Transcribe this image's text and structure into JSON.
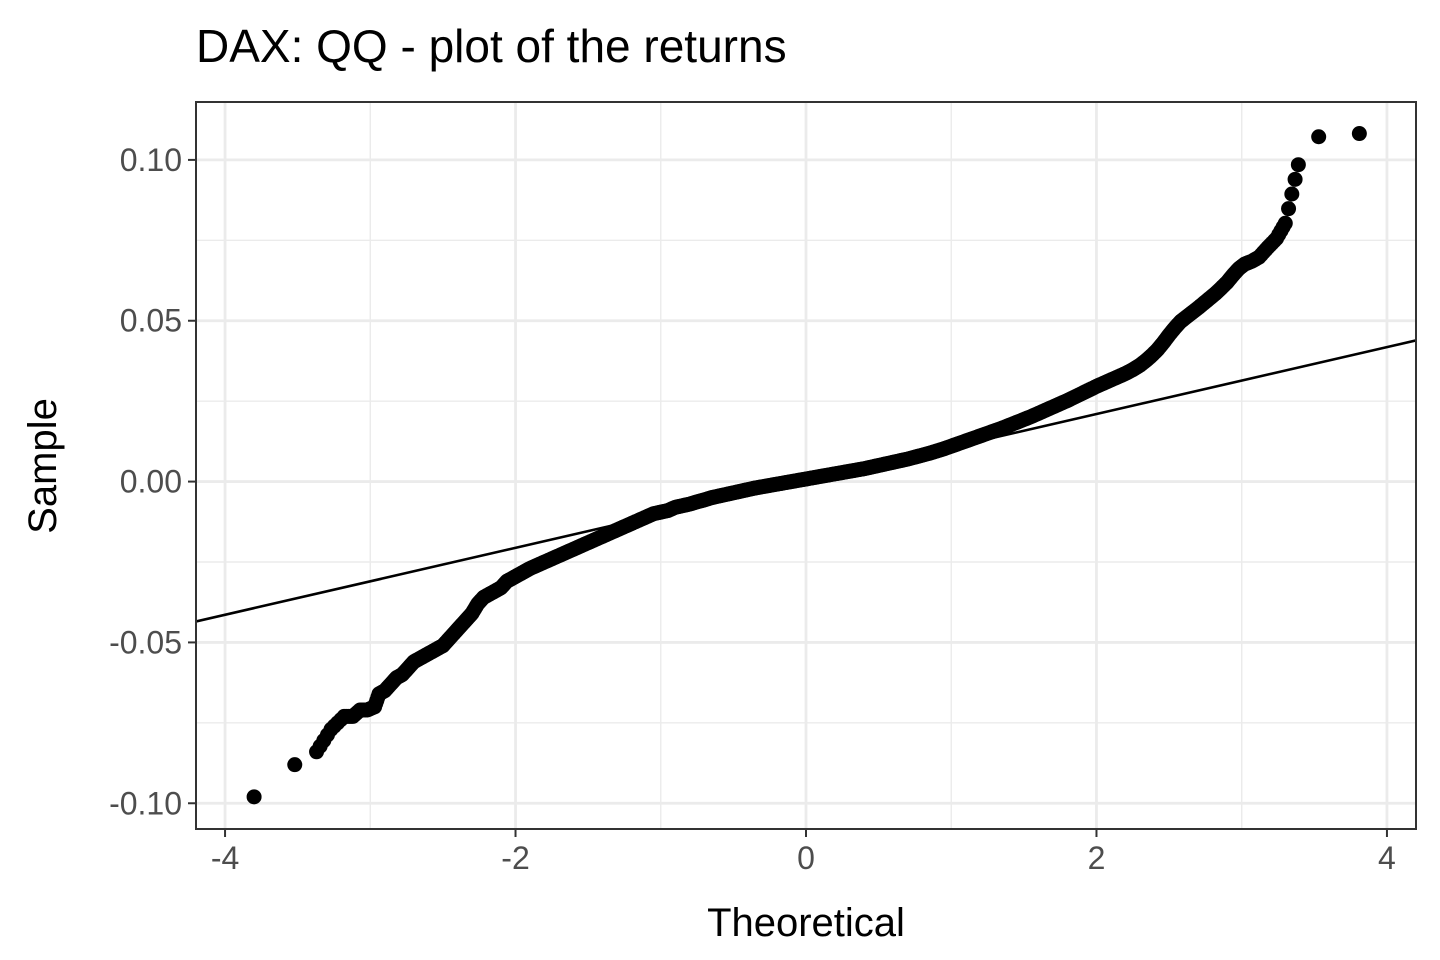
{
  "chart_data": {
    "type": "scatter",
    "title": "DAX: QQ - plot of the returns",
    "xlabel": "Theoretical",
    "ylabel": "Sample",
    "xlim": [
      -4.2,
      4.2
    ],
    "ylim": [
      -0.108,
      0.118
    ],
    "x_ticks": [
      -4,
      -2,
      0,
      2,
      4
    ],
    "x_tick_labels": [
      "-4",
      "-2",
      "0",
      "2",
      "4"
    ],
    "y_ticks": [
      -0.1,
      -0.05,
      0.0,
      0.05,
      0.1
    ],
    "y_tick_labels": [
      "-0.10",
      "-0.05",
      "0.00",
      "0.05",
      "0.10"
    ],
    "grid": true,
    "legend": "none",
    "reference_line": {
      "slope": 0.0104,
      "intercept": 0.0002
    },
    "series": [
      {
        "points": [
          [
            -3.8,
            -0.098
          ],
          [
            -3.52,
            -0.088
          ],
          [
            -3.37,
            -0.084
          ],
          [
            -3.27,
            -0.077
          ],
          [
            -3.18,
            -0.073
          ],
          [
            -3.12,
            -0.073
          ],
          [
            -3.07,
            -0.071
          ],
          [
            -3.02,
            -0.071
          ],
          [
            -2.97,
            -0.07
          ],
          [
            -2.94,
            -0.066
          ],
          [
            -2.9,
            -0.065
          ],
          [
            -2.86,
            -0.063
          ],
          [
            -2.82,
            -0.061
          ],
          [
            -2.78,
            -0.06
          ],
          [
            -2.74,
            -0.058
          ],
          [
            -2.7,
            -0.056
          ],
          [
            -2.66,
            -0.055
          ],
          [
            -2.62,
            -0.054
          ],
          [
            -2.58,
            -0.053
          ],
          [
            -2.54,
            -0.052
          ],
          [
            -2.5,
            -0.051
          ],
          [
            -2.46,
            -0.049
          ],
          [
            -2.42,
            -0.047
          ],
          [
            -2.38,
            -0.045
          ],
          [
            -2.34,
            -0.043
          ],
          [
            -2.3,
            -0.041
          ],
          [
            -2.26,
            -0.038
          ],
          [
            -2.22,
            -0.036
          ],
          [
            -2.18,
            -0.035
          ],
          [
            -2.14,
            -0.034
          ],
          [
            -2.1,
            -0.033
          ],
          [
            -2.06,
            -0.031
          ],
          [
            -2.02,
            -0.03
          ],
          [
            -1.98,
            -0.029
          ],
          [
            -1.94,
            -0.028
          ],
          [
            -1.9,
            -0.027
          ],
          [
            -1.85,
            -0.026
          ],
          [
            -1.8,
            -0.025
          ],
          [
            -1.75,
            -0.024
          ],
          [
            -1.7,
            -0.023
          ],
          [
            -1.65,
            -0.022
          ],
          [
            -1.6,
            -0.021
          ],
          [
            -1.55,
            -0.02
          ],
          [
            -1.5,
            -0.019
          ],
          [
            -1.45,
            -0.018
          ],
          [
            -1.4,
            -0.017
          ],
          [
            -1.35,
            -0.016
          ],
          [
            -1.3,
            -0.015
          ],
          [
            -1.25,
            -0.014
          ],
          [
            -1.2,
            -0.013
          ],
          [
            -1.15,
            -0.012
          ],
          [
            -1.1,
            -0.011
          ],
          [
            -1.05,
            -0.01
          ],
          [
            -1.0,
            -0.0095
          ],
          [
            -0.95,
            -0.009
          ],
          [
            -0.9,
            -0.008
          ],
          [
            -0.85,
            -0.0075
          ],
          [
            -0.8,
            -0.007
          ],
          [
            -0.75,
            -0.0063
          ],
          [
            -0.7,
            -0.0057
          ],
          [
            -0.65,
            -0.005
          ],
          [
            -0.6,
            -0.0045
          ],
          [
            -0.55,
            -0.004
          ],
          [
            -0.5,
            -0.0035
          ],
          [
            -0.45,
            -0.003
          ],
          [
            -0.4,
            -0.0025
          ],
          [
            -0.35,
            -0.002
          ],
          [
            -0.3,
            -0.0016
          ],
          [
            -0.25,
            -0.0012
          ],
          [
            -0.2,
            -0.0008
          ],
          [
            -0.15,
            -0.0004
          ],
          [
            -0.1,
            0.0
          ],
          [
            -0.05,
            0.0004
          ],
          [
            0.0,
            0.0008
          ],
          [
            0.05,
            0.0012
          ],
          [
            0.1,
            0.0016
          ],
          [
            0.15,
            0.002
          ],
          [
            0.2,
            0.0024
          ],
          [
            0.25,
            0.0028
          ],
          [
            0.3,
            0.0032
          ],
          [
            0.35,
            0.0036
          ],
          [
            0.4,
            0.004
          ],
          [
            0.45,
            0.0045
          ],
          [
            0.5,
            0.005
          ],
          [
            0.55,
            0.0055
          ],
          [
            0.6,
            0.006
          ],
          [
            0.65,
            0.0065
          ],
          [
            0.7,
            0.007
          ],
          [
            0.75,
            0.0076
          ],
          [
            0.8,
            0.0082
          ],
          [
            0.85,
            0.0088
          ],
          [
            0.9,
            0.0095
          ],
          [
            0.95,
            0.0102
          ],
          [
            1.0,
            0.011
          ],
          [
            1.05,
            0.0118
          ],
          [
            1.1,
            0.0126
          ],
          [
            1.15,
            0.0134
          ],
          [
            1.2,
            0.0142
          ],
          [
            1.25,
            0.015
          ],
          [
            1.3,
            0.0158
          ],
          [
            1.35,
            0.0166
          ],
          [
            1.4,
            0.0175
          ],
          [
            1.45,
            0.0184
          ],
          [
            1.5,
            0.0193
          ],
          [
            1.55,
            0.0202
          ],
          [
            1.6,
            0.0212
          ],
          [
            1.65,
            0.0222
          ],
          [
            1.7,
            0.0232
          ],
          [
            1.75,
            0.0242
          ],
          [
            1.8,
            0.0252
          ],
          [
            1.85,
            0.0263
          ],
          [
            1.9,
            0.0274
          ],
          [
            1.95,
            0.0285
          ],
          [
            2.0,
            0.0296
          ],
          [
            2.05,
            0.0306
          ],
          [
            2.1,
            0.0316
          ],
          [
            2.15,
            0.0326
          ],
          [
            2.2,
            0.0336
          ],
          [
            2.25,
            0.0348
          ],
          [
            2.3,
            0.0362
          ],
          [
            2.34,
            0.0376
          ],
          [
            2.38,
            0.0392
          ],
          [
            2.42,
            0.041
          ],
          [
            2.46,
            0.0432
          ],
          [
            2.5,
            0.0456
          ],
          [
            2.54,
            0.0478
          ],
          [
            2.58,
            0.0498
          ],
          [
            2.62,
            0.0512
          ],
          [
            2.66,
            0.0526
          ],
          [
            2.7,
            0.054
          ],
          [
            2.74,
            0.0555
          ],
          [
            2.78,
            0.057
          ],
          [
            2.82,
            0.0585
          ],
          [
            2.86,
            0.0602
          ],
          [
            2.9,
            0.062
          ],
          [
            2.94,
            0.0642
          ],
          [
            2.98,
            0.0662
          ],
          [
            3.02,
            0.0676
          ],
          [
            3.07,
            0.0685
          ],
          [
            3.12,
            0.0698
          ],
          [
            3.18,
            0.0728
          ],
          [
            3.24,
            0.0756
          ],
          [
            3.3,
            0.0803
          ],
          [
            3.39,
            0.0985
          ],
          [
            3.53,
            0.1072
          ],
          [
            3.81,
            0.1082
          ]
        ]
      }
    ]
  }
}
